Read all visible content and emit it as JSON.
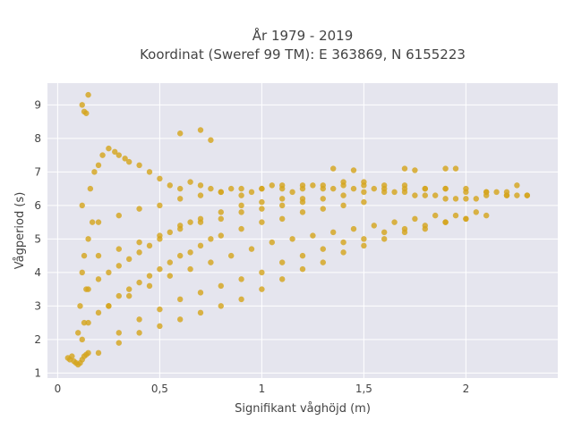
{
  "chart_data": {
    "type": "scatter",
    "title_line1": "År 1979 - 2019",
    "title_line2": "Koordinat (Sweref 99 TM): E 363869, N 6155223",
    "xlabel": "Signifikant våghöjd (m)",
    "ylabel": "Vågperiod (s)",
    "xlim": [
      -0.05,
      2.45
    ],
    "ylim": [
      0.85,
      9.65
    ],
    "x_ticks": [
      0,
      0.5,
      1,
      1.5,
      2
    ],
    "x_tick_labels": [
      "0",
      "0,5",
      "1",
      "1,5",
      "2"
    ],
    "y_ticks": [
      1,
      2,
      3,
      4,
      5,
      6,
      7,
      8,
      9
    ],
    "y_tick_labels": [
      "1",
      "2",
      "3",
      "4",
      "5",
      "6",
      "7",
      "8",
      "9"
    ],
    "grid": true,
    "background_color": "#e5e5ee",
    "marker_color": "#d4a51f",
    "x": [
      0.05,
      0.06,
      0.07,
      0.08,
      0.09,
      0.1,
      0.11,
      0.12,
      0.13,
      0.14,
      0.15,
      0.12,
      0.13,
      0.11,
      0.14,
      0.1,
      0.12,
      0.13,
      0.15,
      0.17,
      0.12,
      0.16,
      0.18,
      0.2,
      0.22,
      0.25,
      0.28,
      0.3,
      0.33,
      0.35,
      0.4,
      0.45,
      0.5,
      0.55,
      0.6,
      0.65,
      0.7,
      0.75,
      0.8,
      0.85,
      0.9,
      0.95,
      1.0,
      1.05,
      1.1,
      1.15,
      1.2,
      1.25,
      1.3,
      1.35,
      1.4,
      1.45,
      1.5,
      1.55,
      1.6,
      1.65,
      1.7,
      1.75,
      1.8,
      1.85,
      1.9,
      1.95,
      2.0,
      2.05,
      2.1,
      2.15,
      2.2,
      2.25,
      2.3,
      0.2,
      0.3,
      0.4,
      0.5,
      0.6,
      0.7,
      0.8,
      0.9,
      1.0,
      1.1,
      1.2,
      1.3,
      1.4,
      1.5,
      1.6,
      1.7,
      1.8,
      1.9,
      2.0,
      0.15,
      0.2,
      0.25,
      0.3,
      0.35,
      0.4,
      0.45,
      0.5,
      0.55,
      0.6,
      0.65,
      0.7,
      0.75,
      0.8,
      0.9,
      1.0,
      1.1,
      1.2,
      1.3,
      1.4,
      1.5,
      0.15,
      0.2,
      0.25,
      0.3,
      0.35,
      0.4,
      0.45,
      0.5,
      0.55,
      0.6,
      0.65,
      0.7,
      0.8,
      0.9,
      1.0,
      1.1,
      1.2,
      0.2,
      0.3,
      0.4,
      0.5,
      0.6,
      0.7,
      0.8,
      0.9,
      1.0,
      1.1,
      1.2,
      1.3,
      1.4,
      1.5,
      1.6,
      1.7,
      1.8,
      1.9,
      2.0,
      2.1,
      2.2,
      0.2,
      0.3,
      0.4,
      0.5,
      0.6,
      0.7,
      0.8,
      0.9,
      1.0,
      1.1,
      1.2,
      1.3,
      1.4,
      1.5,
      1.6,
      1.7,
      1.8,
      1.9,
      2.0,
      2.1,
      2.2,
      0.25,
      0.35,
      0.45,
      0.55,
      0.65,
      0.75,
      0.85,
      0.95,
      1.05,
      1.15,
      1.25,
      1.35,
      1.45,
      1.55,
      1.65,
      1.75,
      1.85,
      1.95,
      2.05,
      0.3,
      0.4,
      0.5,
      0.6,
      0.7,
      0.8,
      0.9,
      1.0,
      1.1,
      1.2,
      1.3,
      1.4,
      1.5,
      1.6,
      1.7,
      1.8,
      1.9,
      2.0,
      2.1,
      0.13,
      0.14,
      0.15,
      0.12,
      0.6,
      0.7,
      0.75,
      1.35,
      1.45,
      1.7,
      1.75,
      1.9,
      1.95,
      2.3,
      2.25
    ],
    "y": [
      1.45,
      1.4,
      1.5,
      1.35,
      1.3,
      1.25,
      1.3,
      1.4,
      1.5,
      1.55,
      1.6,
      2.0,
      2.5,
      3.0,
      3.5,
      2.2,
      4.0,
      4.5,
      5.0,
      5.5,
      6.0,
      6.5,
      7.0,
      7.2,
      7.5,
      7.7,
      7.6,
      7.5,
      7.4,
      7.3,
      7.2,
      7.0,
      6.8,
      6.6,
      6.5,
      6.7,
      6.6,
      6.5,
      6.4,
      6.5,
      6.3,
      6.4,
      6.5,
      6.6,
      6.5,
      6.4,
      6.5,
      6.6,
      6.5,
      6.5,
      6.6,
      6.5,
      6.6,
      6.5,
      6.5,
      6.4,
      6.4,
      6.3,
      6.3,
      6.3,
      6.2,
      6.2,
      6.2,
      6.2,
      6.3,
      6.4,
      6.3,
      6.3,
      6.3,
      1.6,
      1.9,
      2.2,
      2.4,
      2.6,
      2.8,
      3.0,
      3.2,
      3.5,
      3.8,
      4.1,
      4.3,
      4.6,
      4.8,
      5.0,
      5.2,
      5.3,
      5.5,
      5.6,
      2.5,
      2.8,
      3.0,
      3.3,
      3.5,
      3.7,
      3.9,
      4.1,
      4.3,
      4.5,
      4.6,
      4.8,
      5.0,
      5.1,
      5.3,
      5.5,
      5.6,
      5.8,
      5.9,
      6.0,
      6.1,
      3.5,
      3.8,
      4.0,
      4.2,
      4.4,
      4.6,
      4.8,
      5.0,
      5.2,
      5.4,
      5.5,
      5.6,
      5.8,
      6.0,
      6.1,
      6.2,
      6.2,
      4.5,
      4.7,
      4.9,
      5.1,
      5.3,
      5.5,
      5.6,
      5.8,
      5.9,
      6.0,
      6.1,
      6.2,
      6.3,
      6.4,
      6.4,
      6.5,
      6.5,
      6.5,
      6.5,
      6.4,
      6.4,
      5.5,
      5.7,
      5.9,
      6.0,
      6.2,
      6.3,
      6.4,
      6.5,
      6.5,
      6.6,
      6.6,
      6.6,
      6.7,
      6.7,
      6.6,
      6.6,
      6.5,
      6.5,
      6.4,
      6.4,
      6.3,
      3.0,
      3.3,
      3.6,
      3.9,
      4.1,
      4.3,
      4.5,
      4.7,
      4.9,
      5.0,
      5.1,
      5.2,
      5.3,
      5.4,
      5.5,
      5.6,
      5.7,
      5.7,
      5.8,
      2.2,
      2.6,
      2.9,
      3.2,
      3.4,
      3.6,
      3.8,
      4.0,
      4.3,
      4.5,
      4.7,
      4.9,
      5.0,
      5.2,
      5.3,
      5.4,
      5.5,
      5.6,
      5.7,
      8.8,
      8.75,
      9.3,
      9.0,
      8.15,
      8.25,
      7.95,
      7.1,
      7.05,
      7.1,
      7.05,
      7.1,
      7.1,
      6.3,
      6.6
    ]
  }
}
